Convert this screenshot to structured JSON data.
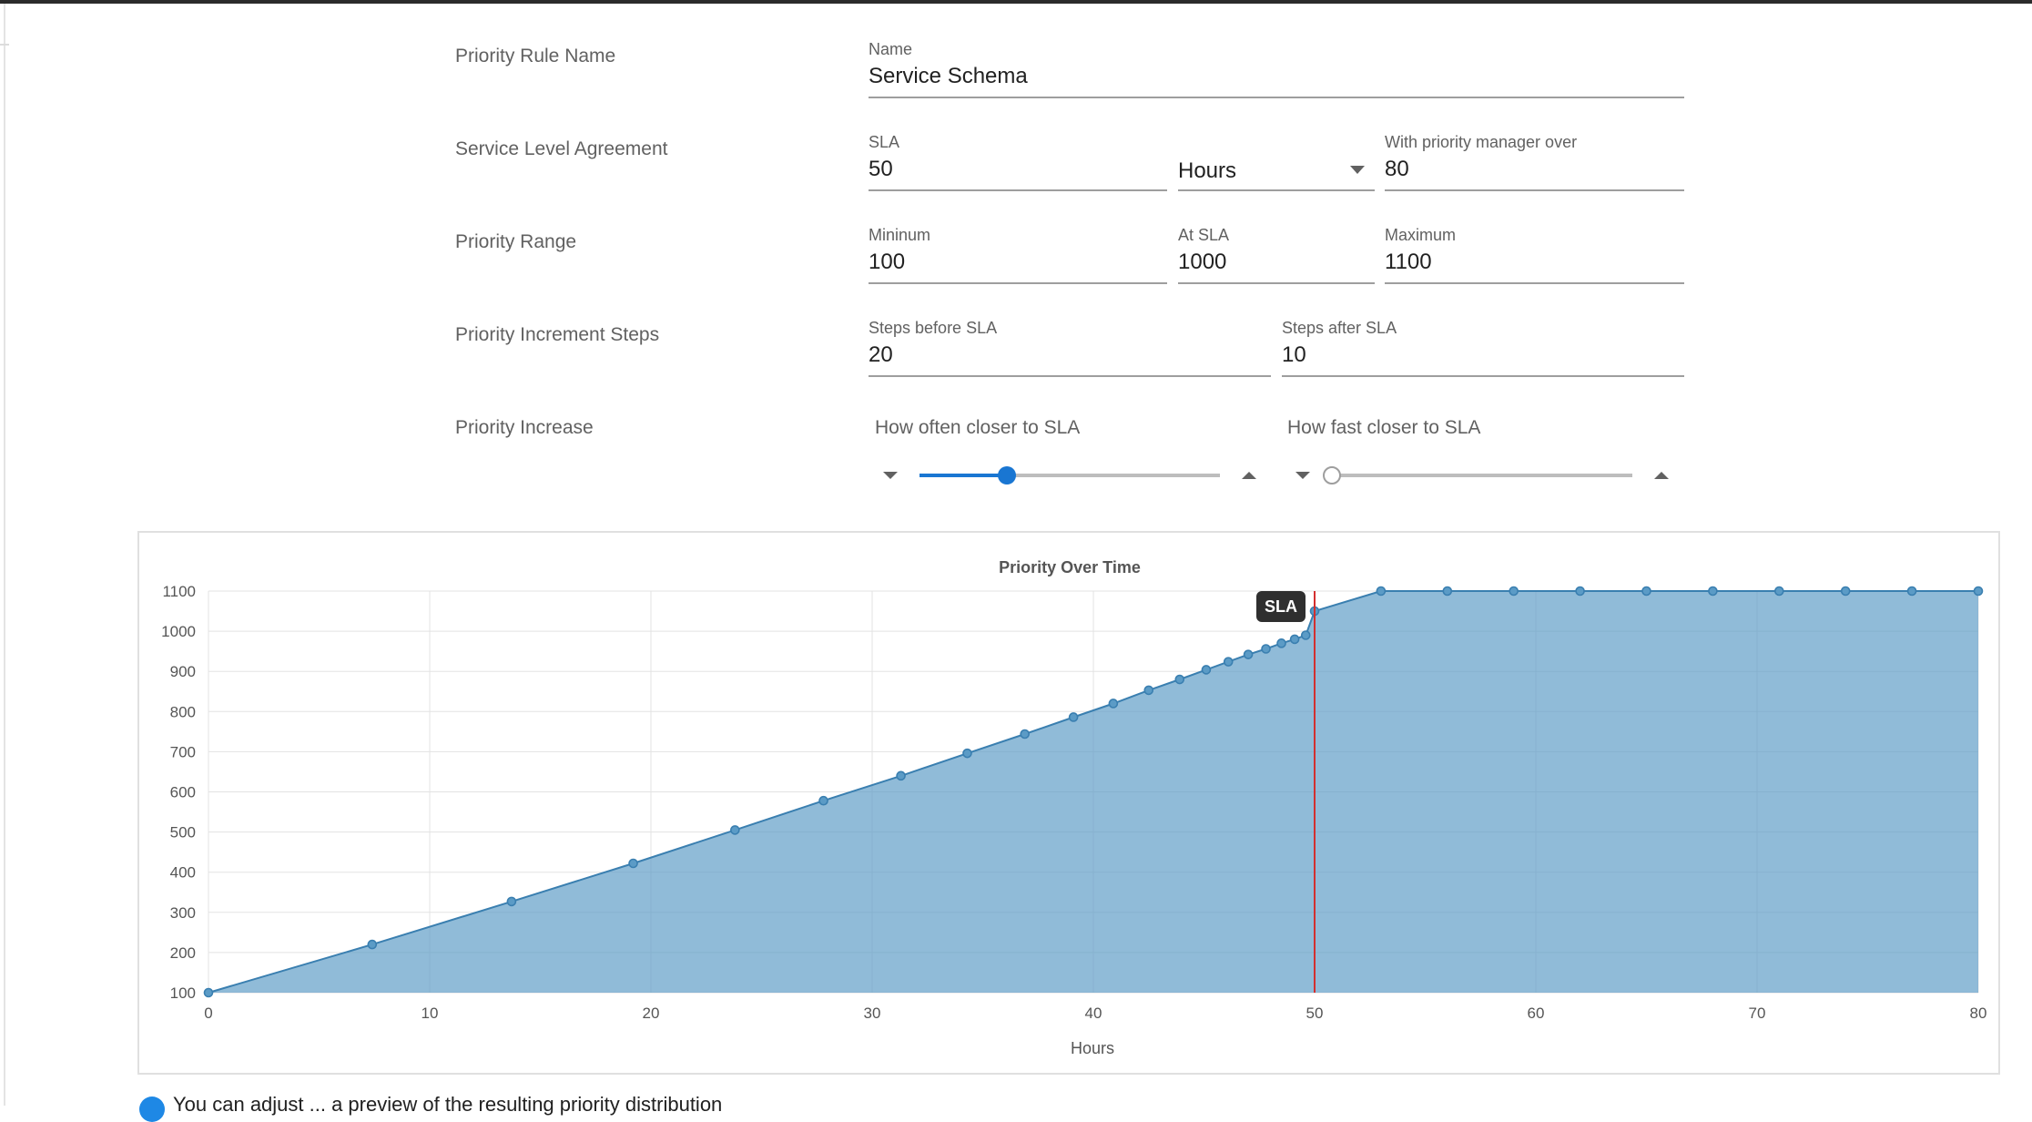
{
  "form": {
    "rule_name": {
      "row_label": "Priority Rule Name",
      "name_label": "Name",
      "name_value": "Service Schema"
    },
    "sla": {
      "row_label": "Service Level Agreement",
      "sla_label": "SLA",
      "sla_value": "50",
      "unit_value": "Hours",
      "manager_label": "With priority manager over",
      "manager_value": "80"
    },
    "range": {
      "row_label": "Priority Range",
      "min_label": "Mininum",
      "min_value": "100",
      "atsla_label": "At SLA",
      "atsla_value": "1000",
      "max_label": "Maximum",
      "max_value": "1100"
    },
    "steps": {
      "row_label": "Priority Increment Steps",
      "before_label": "Steps before SLA",
      "before_value": "20",
      "after_label": "Steps after SLA",
      "after_value": "10"
    },
    "increase": {
      "row_label": "Priority Increase",
      "often_label": "How often closer to SLA",
      "often_level": 0.29,
      "fast_label": "How fast closer to SLA",
      "fast_level": 0.0
    }
  },
  "colors": {
    "accent": "#1976d2",
    "area_fill": "#5b9bc6",
    "area_line": "#3a7fb0",
    "sla_line": "#d32f2f"
  },
  "chart_data": {
    "type": "area",
    "title": "Priority Over Time",
    "xlabel": "Hours",
    "ylabel": "",
    "xlim": [
      0,
      80
    ],
    "ylim": [
      100,
      1100
    ],
    "xticks": [
      0,
      10,
      20,
      30,
      40,
      50,
      60,
      70,
      80
    ],
    "yticks": [
      100,
      200,
      300,
      400,
      500,
      600,
      700,
      800,
      900,
      1000,
      1100
    ],
    "grid": true,
    "annotation": {
      "label": "SLA",
      "x": 50
    },
    "series": [
      {
        "points": [
          [
            0,
            100
          ],
          [
            7.4,
            220
          ],
          [
            13.7,
            327
          ],
          [
            19.2,
            422
          ],
          [
            23.8,
            505
          ],
          [
            27.8,
            578
          ],
          [
            31.3,
            640
          ],
          [
            34.3,
            696
          ],
          [
            36.9,
            744
          ],
          [
            39.1,
            786
          ],
          [
            40.9,
            820
          ],
          [
            42.5,
            853
          ],
          [
            43.9,
            880
          ],
          [
            45.1,
            904
          ],
          [
            46.1,
            924
          ],
          [
            47.0,
            942
          ],
          [
            47.8,
            956
          ],
          [
            48.5,
            970
          ],
          [
            49.1,
            980
          ],
          [
            49.6,
            990
          ],
          [
            50.0,
            1050
          ],
          [
            53,
            1100
          ],
          [
            56,
            1100
          ],
          [
            59,
            1100
          ],
          [
            62,
            1100
          ],
          [
            65,
            1100
          ],
          [
            68,
            1100
          ],
          [
            71,
            1100
          ],
          [
            74,
            1100
          ],
          [
            77,
            1100
          ],
          [
            80,
            1100
          ]
        ]
      }
    ]
  },
  "footer": {
    "note": "You can adjust ... a preview of the resulting priority distribution"
  }
}
